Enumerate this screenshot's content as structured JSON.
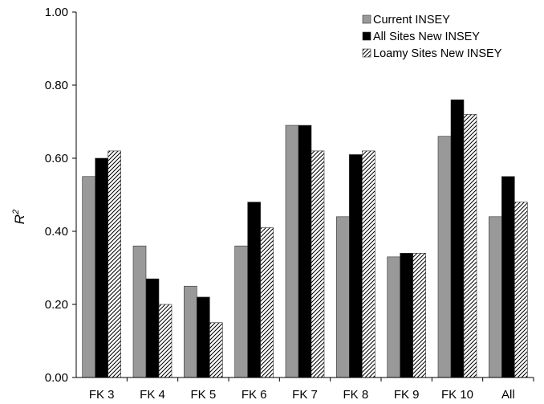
{
  "chart_data": {
    "type": "bar",
    "categories": [
      "FK 3",
      "FK 4",
      "FK 5",
      "FK 6",
      "FK 7",
      "FK 8",
      "FK 9",
      "FK 10",
      "All"
    ],
    "series": [
      {
        "name": "Current INSEY",
        "values": [
          0.55,
          0.36,
          0.25,
          0.36,
          0.69,
          0.44,
          0.33,
          0.66,
          0.44
        ],
        "color": "#999999",
        "pattern": "solid"
      },
      {
        "name": "All Sites New INSEY",
        "values": [
          0.6,
          0.27,
          0.22,
          0.48,
          0.69,
          0.61,
          0.34,
          0.76,
          0.55
        ],
        "color": "#000000",
        "pattern": "solid"
      },
      {
        "name": "Loamy Sites New INSEY",
        "values": [
          0.62,
          0.2,
          0.15,
          0.41,
          0.62,
          0.62,
          0.34,
          0.72,
          0.48
        ],
        "color": "#ffffff",
        "pattern": "diagonal-hatch"
      }
    ],
    "ylim": [
      0,
      1.0
    ],
    "yticks": [
      "0.00",
      "0.20",
      "0.40",
      "0.60",
      "0.80",
      "1.00"
    ],
    "ylabel": "R",
    "ylabel_superscript": "2",
    "xlabel": "",
    "title": "",
    "grid": false,
    "legend_position": "top-right"
  }
}
